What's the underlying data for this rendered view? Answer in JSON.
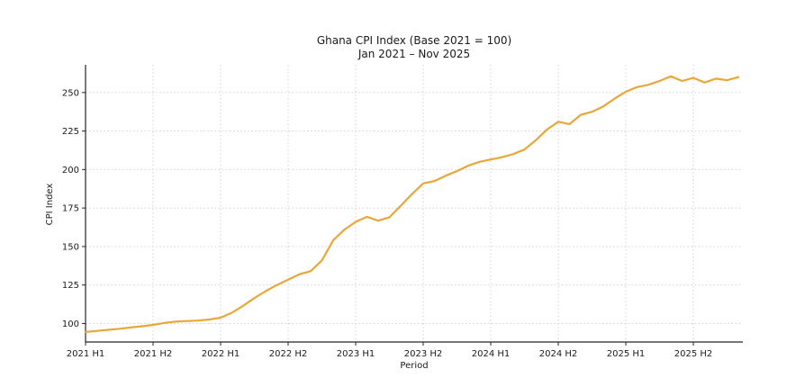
{
  "chart_data": {
    "type": "line",
    "title": "Ghana CPI Index (Base 2021 = 100)",
    "subtitle": "Jan 2021 – Nov 2025",
    "xlabel": "Period",
    "ylabel": "CPI Index",
    "grid": true,
    "legend_position": "none",
    "background_color": "#ffffff",
    "grid_color": "#cccccc",
    "axis_color": "#262626",
    "line_color": "#E9A63A",
    "y_ticks": [
      100,
      125,
      150,
      175,
      200,
      225,
      250
    ],
    "ylim": [
      88,
      268
    ],
    "x_tick_labels": [
      "2021 H1",
      "2021 H2",
      "2022 H1",
      "2022 H2",
      "2023 H1",
      "2023 H2",
      "2024 H1",
      "2024 H2",
      "2025 H1",
      "2025 H2"
    ],
    "x_tick_month_indices": [
      0,
      6,
      12,
      18,
      24,
      30,
      36,
      42,
      48,
      54
    ],
    "xlim_month_indices": [
      0,
      58.4
    ],
    "series": [
      {
        "name": "Ghana CPI Index",
        "frequency": "monthly",
        "start": "Jan 2021",
        "end": "Nov 2025",
        "values": [
          94.5,
          95.2,
          95.9,
          96.6,
          97.4,
          98.2,
          99.1,
          100.4,
          101.2,
          101.6,
          101.9,
          102.6,
          103.8,
          107.0,
          111.5,
          116.5,
          121.0,
          125.0,
          128.5,
          132.0,
          134.0,
          141.0,
          154.0,
          161.0,
          166.0,
          169.3,
          166.8,
          169.0,
          176.5,
          184.0,
          191.0,
          192.5,
          196.0,
          199.0,
          202.5,
          205.0,
          206.5,
          208.0,
          210.0,
          213.0,
          219.0,
          226.0,
          231.0,
          229.5,
          235.5,
          237.5,
          241.0,
          246.0,
          250.5,
          253.5,
          255.0,
          257.5,
          260.5,
          257.5,
          259.5,
          256.5,
          259.0,
          258.0,
          260.0
        ]
      }
    ]
  }
}
